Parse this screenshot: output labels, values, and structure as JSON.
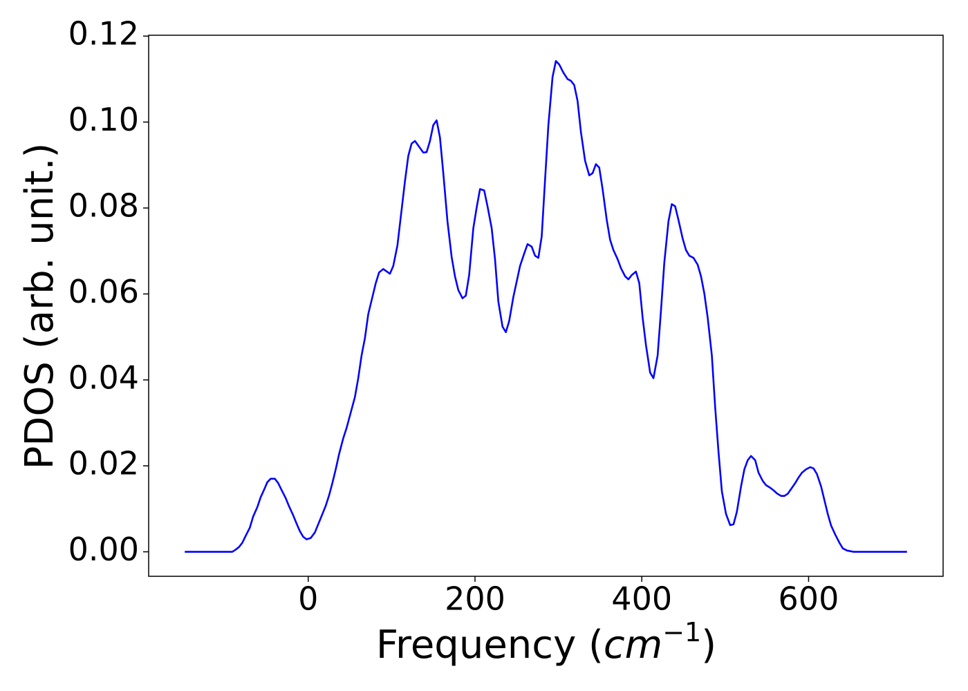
{
  "chart_data": {
    "type": "line",
    "xlabel_parts": [
      "Frequency (",
      "cm",
      "−1",
      ")"
    ],
    "ylabel": "PDOS (arb. unit.)",
    "xlim": [
      -191.3,
      761.3
    ],
    "ylim": [
      -0.0057,
      0.1202
    ],
    "xticks": [
      0,
      200,
      400,
      600
    ],
    "yticks": [
      {
        "value": 0,
        "label": "0.00"
      },
      {
        "value": 0.02,
        "label": "0.02"
      },
      {
        "value": 0.04,
        "label": "0.04"
      },
      {
        "value": 0.06,
        "label": "0.06"
      },
      {
        "value": 0.08,
        "label": "0.08"
      },
      {
        "value": 0.1,
        "label": "0.10"
      },
      {
        "value": 0.12,
        "label": "0.12"
      }
    ],
    "grid": false,
    "series": [
      {
        "color": "#0000ff",
        "x": [
          -148,
          -120,
          -91,
          -87,
          -83,
          -79,
          -75,
          -70,
          -66,
          -61,
          -57,
          -53,
          -49,
          -45,
          -40,
          -36,
          -32,
          -27,
          -23,
          -18,
          -14,
          -10,
          -6,
          -2,
          3,
          8,
          12,
          16,
          21,
          25,
          29,
          33,
          37,
          42,
          46,
          51,
          56,
          60,
          64,
          68,
          72,
          77,
          81,
          85,
          90,
          98,
          102,
          107,
          116,
          120,
          124,
          128,
          138,
          142,
          146,
          150,
          154,
          158,
          162,
          167,
          172,
          176,
          180,
          185,
          189,
          193,
          198,
          202,
          206,
          211,
          215,
          220,
          224,
          228,
          233,
          237,
          241,
          246,
          254,
          259,
          263,
          268,
          272,
          276,
          280,
          284,
          288,
          293,
          297,
          301,
          306,
          311,
          315,
          319,
          323,
          327,
          332,
          337,
          341,
          345,
          349,
          353,
          358,
          362,
          366,
          371,
          375,
          380,
          384,
          388,
          393,
          397,
          401,
          405,
          410,
          414,
          419,
          423,
          427,
          432,
          436,
          440,
          444,
          449,
          453,
          457,
          462,
          467,
          471,
          475,
          479,
          484,
          488,
          492,
          496,
          501,
          506,
          510,
          514,
          519,
          523,
          527,
          531,
          536,
          540,
          545,
          549,
          554,
          558,
          562,
          567,
          571,
          575,
          579,
          584,
          588,
          592,
          597,
          602,
          606,
          610,
          615,
          619,
          623,
          627,
          632,
          637,
          641,
          646,
          654,
          718
        ],
        "values": [
          0,
          0,
          0,
          0.0005,
          0.0011,
          0.0021,
          0.0037,
          0.0056,
          0.0082,
          0.0104,
          0.0127,
          0.0144,
          0.0162,
          0.017,
          0.017,
          0.016,
          0.0144,
          0.0125,
          0.0106,
          0.0085,
          0.0066,
          0.0048,
          0.0035,
          0.0029,
          0.0032,
          0.0045,
          0.0064,
          0.0083,
          0.0107,
          0.0131,
          0.016,
          0.0192,
          0.0227,
          0.0264,
          0.0288,
          0.0324,
          0.036,
          0.0404,
          0.0457,
          0.0497,
          0.0553,
          0.0593,
          0.0625,
          0.065,
          0.0658,
          0.0647,
          0.0665,
          0.0713,
          0.0862,
          0.0921,
          0.095,
          0.0956,
          0.0929,
          0.093,
          0.0956,
          0.0993,
          0.1004,
          0.0964,
          0.0881,
          0.0769,
          0.0686,
          0.0641,
          0.0609,
          0.059,
          0.0596,
          0.0644,
          0.0753,
          0.0801,
          0.0844,
          0.0841,
          0.0804,
          0.0753,
          0.0681,
          0.0582,
          0.0524,
          0.0511,
          0.0537,
          0.0593,
          0.0665,
          0.0694,
          0.0716,
          0.071,
          0.0689,
          0.0684,
          0.0734,
          0.0865,
          0.0993,
          0.1105,
          0.1142,
          0.1134,
          0.1115,
          0.11,
          0.1096,
          0.1086,
          0.1049,
          0.0977,
          0.091,
          0.0876,
          0.0881,
          0.0902,
          0.0894,
          0.0844,
          0.0772,
          0.0726,
          0.0702,
          0.0681,
          0.066,
          0.0641,
          0.0634,
          0.0644,
          0.0652,
          0.0625,
          0.0545,
          0.0481,
          0.0417,
          0.0404,
          0.0457,
          0.0561,
          0.0673,
          0.0769,
          0.0809,
          0.0804,
          0.0772,
          0.0729,
          0.0702,
          0.0689,
          0.0684,
          0.0668,
          0.0641,
          0.0601,
          0.0545,
          0.0457,
          0.0336,
          0.0232,
          0.0141,
          0.0088,
          0.0062,
          0.0064,
          0.0093,
          0.0152,
          0.0192,
          0.0213,
          0.0223,
          0.0213,
          0.0184,
          0.0165,
          0.0155,
          0.0149,
          0.0143,
          0.0136,
          0.013,
          0.013,
          0.0135,
          0.0146,
          0.016,
          0.0173,
          0.0184,
          0.0192,
          0.0197,
          0.0194,
          0.0181,
          0.0152,
          0.012,
          0.0088,
          0.0061,
          0.004,
          0.0021,
          0.0008,
          0.0003,
          0,
          0
        ]
      }
    ]
  }
}
